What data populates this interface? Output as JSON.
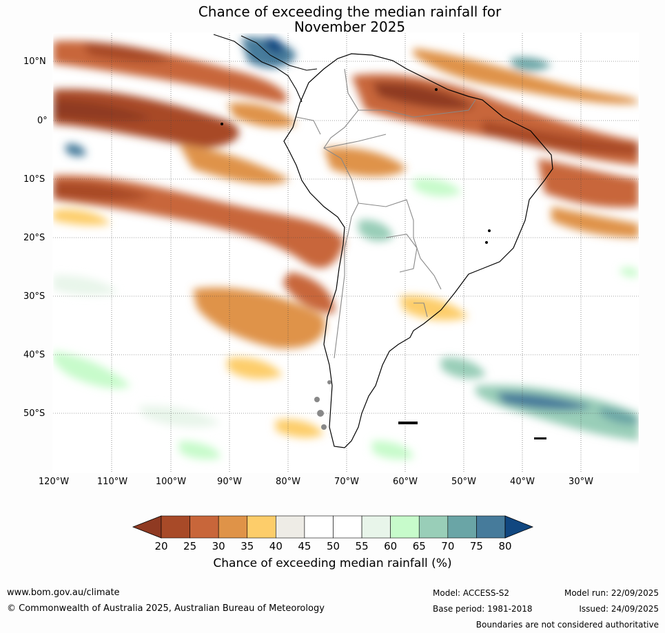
{
  "title_line1": "Chance of exceeding the median rainfall for",
  "title_line2": "November 2025",
  "map": {
    "lat_labels": [
      "10°N",
      "0°",
      "10°S",
      "20°S",
      "30°S",
      "40°S",
      "50°S"
    ],
    "lon_labels": [
      "120°W",
      "110°W",
      "100°W",
      "90°W",
      "80°W",
      "70°W",
      "60°W",
      "50°W",
      "40°W",
      "30°W"
    ]
  },
  "legend": {
    "ticks": [
      "20",
      "25",
      "30",
      "35",
      "40",
      "45",
      "50",
      "55",
      "60",
      "65",
      "70",
      "75",
      "80"
    ],
    "colors": [
      "#8f3a22",
      "#a84a28",
      "#c8663a",
      "#df9348",
      "#fdcd6a",
      "#eeece6",
      "#ffffff",
      "#ffffff",
      "#e8f5ea",
      "#c7fbcb",
      "#99ceb8",
      "#6aa5a6",
      "#467b9b",
      "#114780"
    ],
    "title": "Chance of exceeding median rainfall (%)"
  },
  "footer": {
    "website": "www.bom.gov.au/climate",
    "copyright": "© Commonwealth of Australia 2025, Australian Bureau of Meteorology",
    "model": "Model: ACCESS-S2",
    "base_period": "Base period: 1981-2018",
    "model_run": "Model run: 22/09/2025",
    "issued": "Issued: 24/09/2025",
    "disclaimer": "Boundaries are not considered authoritative"
  }
}
